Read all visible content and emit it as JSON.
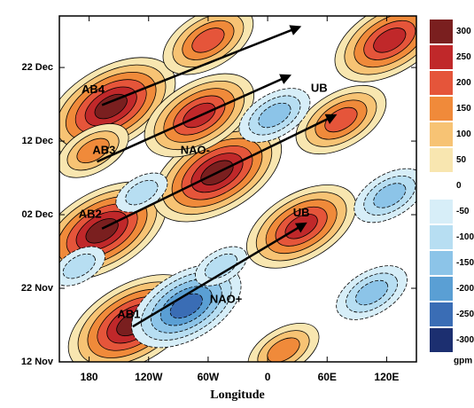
{
  "chart_data": {
    "type": "contour",
    "xlabel": "Longitude",
    "xlim": [
      150,
      510
    ],
    "xticks": [
      180,
      {
        "value": 240,
        "label": "120W"
      },
      {
        "value": 300,
        "label": "60W"
      },
      {
        "value": 360,
        "label": "0"
      },
      {
        "value": 420,
        "label": "60E"
      },
      {
        "value": 480,
        "label": "120E"
      }
    ],
    "ylim": [
      0,
      47
    ],
    "yticks": [
      {
        "value": 0,
        "label": "12 Nov"
      },
      {
        "value": 10,
        "label": "22 Nov"
      },
      {
        "value": 20,
        "label": "02 Dec"
      },
      {
        "value": 30,
        "label": "12 Dec"
      },
      {
        "value": 40,
        "label": "22 Dec"
      }
    ],
    "colorbar": {
      "levels": [
        300,
        250,
        200,
        150,
        100,
        50,
        0,
        -50,
        -100,
        -150,
        -200,
        -250,
        -300
      ],
      "colors": [
        "#7a1f1f",
        "#c0282a",
        "#e5553a",
        "#f08a3a",
        "#f7c374",
        "#f8e6b0",
        "#ffffff",
        "#d7eef8",
        "#b7def2",
        "#8cc4e8",
        "#5a9fd4",
        "#3a6db5",
        "#1c2f70"
      ],
      "unit": "gpm"
    },
    "blobs": [
      {
        "x": 202,
        "y": 34.7,
        "value": 300
      },
      {
        "x": 193,
        "y": 17.8,
        "value": 300
      },
      {
        "x": 224,
        "y": 5.2,
        "value": 300
      },
      {
        "x": 309,
        "y": 25.7,
        "value": 300
      },
      {
        "x": 291,
        "y": 33.5,
        "value": 250
      },
      {
        "x": 394,
        "y": 18.4,
        "value": 250
      },
      {
        "x": 434,
        "y": 32.9,
        "value": 200
      },
      {
        "x": 300,
        "y": 43.7,
        "value": 200
      },
      {
        "x": 483,
        "y": 43.7,
        "value": 250
      },
      {
        "x": 376,
        "y": 1.6,
        "value": 150
      },
      {
        "x": 184,
        "y": 28.7,
        "value": 150
      },
      {
        "x": 278,
        "y": 7.6,
        "value": -250
      },
      {
        "x": 367,
        "y": 33.5,
        "value": -150
      },
      {
        "x": 483,
        "y": 22.6,
        "value": -150
      },
      {
        "x": 233,
        "y": 23,
        "value": -100
      },
      {
        "x": 465,
        "y": 9.4,
        "value": -150
      },
      {
        "x": 170,
        "y": 13,
        "value": -100
      },
      {
        "x": 313,
        "y": 13,
        "value": -100
      }
    ],
    "arrows": [
      {
        "x1": 224,
        "y1": 4.8,
        "x2": 398,
        "y2": 18.8
      },
      {
        "x1": 193,
        "y1": 18.1,
        "x2": 428,
        "y2": 33.5
      },
      {
        "x1": 188,
        "y1": 27.2,
        "x2": 382,
        "y2": 38.9
      },
      {
        "x1": 193,
        "y1": 34.9,
        "x2": 392,
        "y2": 45.5
      }
    ],
    "annotations": [
      {
        "text": "AB4",
        "x": 184,
        "y": 36.9
      },
      {
        "text": "AB3",
        "x": 195,
        "y": 28.7
      },
      {
        "text": "AB2",
        "x": 181,
        "y": 20
      },
      {
        "text": "AB1",
        "x": 220,
        "y": 6.4
      },
      {
        "text": "NAO-",
        "x": 287,
        "y": 28.7
      },
      {
        "text": "NAO+",
        "x": 318,
        "y": 8.4
      },
      {
        "text": "UB",
        "x": 412,
        "y": 37.1
      },
      {
        "text": "UB",
        "x": 394,
        "y": 20.2
      }
    ]
  }
}
